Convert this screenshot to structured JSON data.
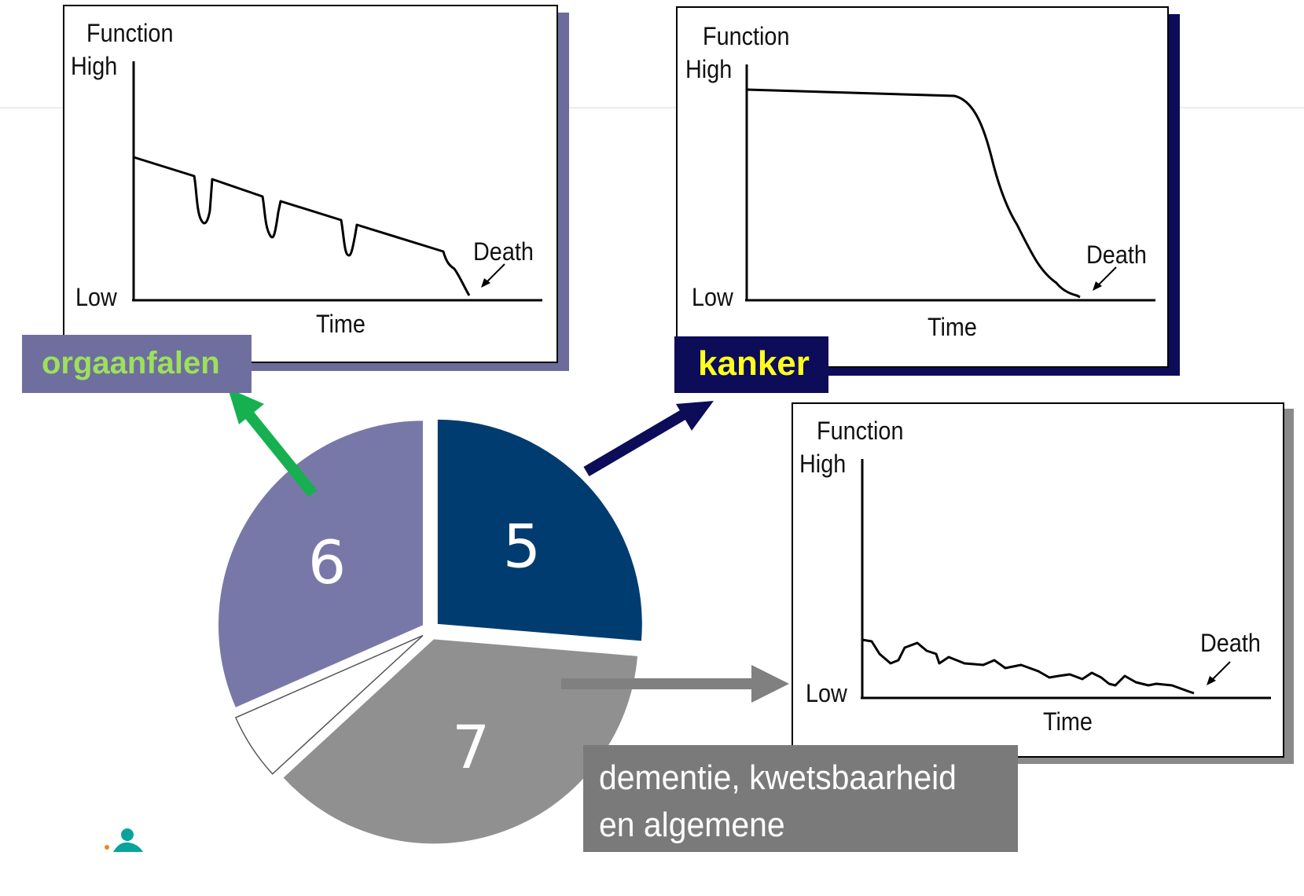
{
  "panels": {
    "organ": {
      "function_label": "Function",
      "high_label": "High",
      "low_label": "Low",
      "time_label": "Time",
      "death_label": "Death"
    },
    "cancer": {
      "function_label": "Function",
      "high_label": "High",
      "low_label": "Low",
      "time_label": "Time",
      "death_label": "Death"
    },
    "frailty": {
      "function_label": "Function",
      "high_label": "High",
      "low_label": "Low",
      "time_label": "Time",
      "death_label": "Death"
    }
  },
  "categories": {
    "organ": "orgaanfalen",
    "cancer": "kanker",
    "frailty_line1": "dementie, kwetsbaarheid",
    "frailty_line2": "en algemene achteruitgang"
  },
  "pie": {
    "values": [
      {
        "key": "cancer",
        "value": 5,
        "label": "5",
        "color": "#003c70"
      },
      {
        "key": "frailty",
        "value": 7,
        "label": "7",
        "color": "#909090"
      },
      {
        "key": "other",
        "value": 1,
        "label": "",
        "color": "#ffffff"
      },
      {
        "key": "organ",
        "value": 6,
        "label": "6",
        "color": "#7878a8"
      }
    ]
  },
  "colors": {
    "organ_arrow": "#16b050",
    "cancer_arrow": "#0c0c58",
    "frailty_arrow": "#808080",
    "organ_label_text": "#9ee05b",
    "cancer_label_text": "#ffff1e"
  },
  "logo": {
    "icon": "person-logo-icon"
  }
}
